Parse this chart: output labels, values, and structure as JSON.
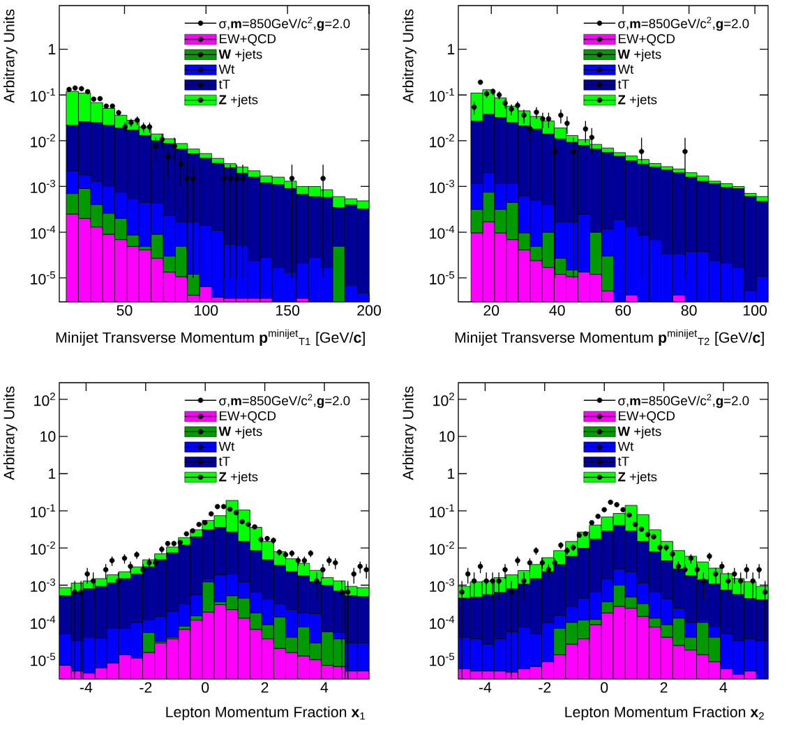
{
  "chart_data": [
    {
      "type": "bar",
      "stacked": true,
      "xlabel": "Minijet Transverse Momentum **p**$^{minijet}$$_{T1}$ [GeV/**c**]",
      "ylabel": "Arbitrary Units",
      "log": "y",
      "legend": "top right",
      "xlim": [
        10,
        200
      ],
      "ylim": [
        3e-06,
        9
      ],
      "xticks": [
        50,
        100,
        150,
        200
      ],
      "yticks": [
        {
          "value": 1e-05,
          "label": "10$^{-5}$"
        },
        {
          "value": 0.0001,
          "label": "10$^{-4}$"
        },
        {
          "value": 0.001,
          "label": "10$^{-3}$"
        },
        {
          "value": 0.01,
          "label": "10$^{-2}$"
        },
        {
          "value": 0.1,
          "label": "10$^{-1}$"
        },
        1
      ],
      "x": [
        18.0,
        25.5,
        32.9,
        40.3,
        47.7,
        55.2,
        62.6,
        70.0,
        77.5,
        84.9,
        92.3,
        99.7,
        107.2,
        114.6,
        122.0,
        129.4,
        136.9,
        144.3,
        151.7,
        159.2,
        166.6,
        174.0,
        181.4,
        188.9,
        196.3
      ],
      "series": [
        {
          "name": "σ,**m**=850GeV/c$^{2}$,**g**=2.0",
          "type": "scatter",
          "color": "#000000",
          "marker": "circle",
          "x": [
            16.0,
            19.7,
            23.6,
            27.4,
            31.1,
            35.0,
            38.8,
            42.6,
            46.4,
            50.3,
            54.0,
            57.8,
            61.7,
            65.4,
            69.2,
            73.1,
            76.8,
            80.7,
            84.5,
            88.2,
            92.1,
            111.1,
            114.9,
            118.8,
            122.5,
            152.7,
            171.8
          ],
          "values": [
            0.132,
            0.142,
            0.137,
            0.118,
            0.081,
            0.083,
            0.057,
            0.057,
            0.041,
            0.02,
            0.025,
            0.028,
            0.02,
            0.02,
            0.0076,
            0.0107,
            0.0045,
            0.0076,
            0.0031,
            0.0015,
            0.0015,
            0.0015,
            0.0015,
            0.0015,
            0.0015,
            0.0015,
            0.0015
          ],
          "errors": [
            0.01,
            0.01,
            0.01,
            0.01,
            0.008,
            0.008,
            0.007,
            0.007,
            0.006,
            0.005,
            0.005,
            0.006,
            0.005,
            0.005,
            0.004,
            0.0035,
            0.003,
            0.004,
            0.0021,
            0.00149,
            0.00149,
            0.00149,
            0.00149,
            0.00149,
            0.00149,
            0.00149,
            0.00149
          ]
        },
        {
          "name": "EW+QCD",
          "color": "#ff00ff",
          "values": [
            0.00025,
            0.0002,
            0.00013,
            9e-05,
            6.9e-05,
            4.9e-05,
            4.1e-05,
            2.7e-05,
            1.35e-05,
            1.07e-05,
            4.2e-06,
            6.5e-06,
            3.8e-06,
            3.6e-06,
            3.6e-06,
            3.6e-06,
            3.6e-06,
            null,
            null,
            3.6e-06,
            null,
            null,
            null,
            null,
            null
          ]
        },
        {
          "name": "**W** +jets",
          "color": "#009900",
          "values": [
            0.00045,
            0.0007,
            0.00027,
            0.00017,
            0.000131,
            3.8e-05,
            8e-06,
            6.3e-05,
            1.65e-05,
            3.83e-05,
            7.8e-06,
            null,
            null,
            null,
            null,
            null,
            null,
            null,
            null,
            null,
            null,
            null,
            4.9e-05,
            null,
            null
          ]
        },
        {
          "name": "Wt",
          "color": "#0000ff",
          "values": [
            0.0015,
            0.0009,
            0.0009,
            0.00074,
            0.00055,
            0.000443,
            0.000401,
            0.00034,
            0.0002,
            0.000121,
            0.000158,
            0.000134,
            0.000106,
            5.14e-05,
            4.84e-05,
            2.04e-05,
            2.44e-05,
            1.7e-05,
            1.35e-05,
            1.74e-05,
            2.8e-05,
            1.7e-05,
            null,
            7e-06,
            4.7e-06
          ]
        },
        {
          "name": "tT",
          "color": "#000099",
          "values": [
            0.0198,
            0.0242,
            0.0237,
            0.021,
            0.0183,
            0.0165,
            0.0126,
            0.0096,
            0.0085,
            0.0064,
            0.005,
            0.004,
            0.0031,
            0.0025,
            0.0019,
            0.00158,
            0.00117,
            0.00108,
            0.00089,
            0.00065,
            0.00057,
            0.00056,
            0.0003,
            0.00039,
            0.00032
          ]
        },
        {
          "name": "**Z** +jets",
          "color": "#00ff00",
          "values": [
            0.098,
            0.084,
            0.043,
            0.029,
            0.017,
            0.011,
            0.007,
            0.004,
            0.0023,
            0.0021,
            0.0014,
            0.0011,
            0.0009,
            0.0006,
            0.0007,
            0.0006,
            0.0005,
            0.0005,
            0.0004,
            0.00033,
            0.0004,
            0.00027,
            0.00025,
            0.00014,
            0.00016
          ]
        }
      ]
    },
    {
      "type": "bar",
      "stacked": true,
      "xlabel": "Minijet Transverse Momentum **p**$^{minijet}$$_{T2}$ [GeV/**c**]",
      "ylabel": "Arbitrary Units",
      "log": "y",
      "legend": "top right",
      "xlim": [
        10,
        104
      ],
      "ylim": [
        3e-06,
        9
      ],
      "xticks": [
        20,
        40,
        60,
        80,
        100
      ],
      "yticks": [
        {
          "value": 1e-05,
          "label": "10$^{-5}$"
        },
        {
          "value": 0.0001,
          "label": "10$^{-4}$"
        },
        {
          "value": 0.001,
          "label": "10$^{-3}$"
        },
        {
          "value": 0.01,
          "label": "10$^{-2}$"
        },
        {
          "value": 0.1,
          "label": "10$^{-1}$"
        },
        1
      ],
      "x": [
        15.6,
        19.2,
        22.8,
        26.4,
        30.0,
        33.6,
        37.3,
        40.9,
        44.5,
        48.1,
        51.7,
        55.3,
        58.9,
        62.5,
        66.1,
        69.7,
        73.3,
        76.9,
        80.6,
        84.2,
        87.8,
        91.4,
        95.0,
        98.6,
        102.2
      ],
      "series": [
        {
          "name": "σ,**m**=850GeV/c$^{2}$,**g**=2.0",
          "type": "scatter",
          "color": "#000000",
          "marker": "circle",
          "x": [
            14.8,
            16.7,
            18.6,
            20.5,
            22.4,
            24.2,
            26.1,
            28.0,
            29.9,
            31.8,
            33.7,
            35.6,
            37.4,
            39.3,
            41.1,
            43.0,
            44.9,
            48.6,
            50.5,
            65.6,
            78.8
          ],
          "values": [
            0.054,
            0.19,
            0.106,
            0.119,
            0.1,
            0.066,
            0.049,
            0.059,
            0.036,
            0.018,
            0.042,
            0.03,
            0.03,
            0.0058,
            0.036,
            0.024,
            0.0058,
            0.018,
            0.0118,
            0.0058,
            0.0058
          ],
          "errors": [
            0.017,
            0.02,
            0.02,
            0.02,
            0.02,
            0.015,
            0.013,
            0.013,
            0.012,
            0.009,
            0.012,
            0.011,
            0.011,
            0.00579,
            0.012,
            0.01,
            0.00579,
            0.009,
            0.007,
            0.00579,
            0.00579
          ]
        },
        {
          "name": "EW+QCD",
          "color": "#ff00ff",
          "values": [
            9.7e-05,
            0.00017,
            9.7e-05,
            6.9e-05,
            4.1e-05,
            2.4e-05,
            1.7e-05,
            1.2e-05,
            1.07e-05,
            1.35e-05,
            1.2e-05,
            5.2e-06,
            null,
            4.2e-06,
            null,
            null,
            null,
            4.2e-06,
            null,
            null,
            null,
            null,
            null,
            null,
            null
          ]
        },
        {
          "name": "**W** +jets",
          "color": "#009900",
          "values": [
            0.00022,
            0.00058,
            0.00022,
            0.00038,
            5.6e-05,
            2.5e-05,
            8.3e-05,
            1.5e-05,
            4.3e-06,
            null,
            8.8e-05,
            2.5e-05,
            null,
            null,
            null,
            null,
            null,
            null,
            null,
            null,
            null,
            null,
            null,
            null,
            null
          ]
        },
        {
          "name": "Wt",
          "color": "#0000ff",
          "values": [
            0.00083,
            0.00125,
            0.00083,
            0.0007,
            0.00053,
            0.00045,
            0.0003,
            0.000143,
            0.000155,
            0.000237,
            null,
            8.7e-05,
            0.00019,
            0.000126,
            8.7e-05,
            6.9e-05,
            3.4e-05,
            2.98e-05,
            3.8e-05,
            3.8e-05,
            2.4e-05,
            2.1e-05,
            1.7e-05,
            5.2e-06,
            1.1e-05
          ]
        },
        {
          "name": "tT",
          "color": "#000099",
          "values": [
            0.0259,
            0.036,
            0.0309,
            0.0239,
            0.0204,
            0.0175,
            0.0136,
            0.0108,
            0.0091,
            0.0076,
            0.0065,
            0.0054,
            0.0044,
            0.0035,
            0.003,
            0.0026,
            0.00227,
            0.00197,
            0.00156,
            0.00126,
            0.00113,
            0.00093,
            0.00088,
            0.0006,
            0.00046
          ]
        },
        {
          "name": "**Z** +jets",
          "color": "#00ff00",
          "values": [
            0.083,
            0.092,
            0.054,
            0.032,
            0.024,
            0.016,
            0.013,
            0.008,
            0.0037,
            0.0027,
            0.0017,
            0.0014,
            0.0009,
            0.001,
            0.0008,
            0.0005,
            0.0004,
            0.0004,
            0.0004,
            0.0004,
            0.00015,
            0.0002,
            0.0001,
            0.0001,
            0.00013
          ]
        }
      ]
    },
    {
      "type": "bar",
      "stacked": true,
      "xlabel": "Lepton Momentum Fraction **x**$_{1}$",
      "ylabel": "Arbitrary Units",
      "log": "y",
      "legend": "top right",
      "xlim": [
        -4.9,
        5.5
      ],
      "ylim": [
        3e-06,
        280
      ],
      "xticks": [
        -4,
        -2,
        0,
        2,
        4
      ],
      "yticks": [
        {
          "value": 1e-05,
          "label": "10$^{-5}$"
        },
        {
          "value": 0.0001,
          "label": "10$^{-4}$"
        },
        {
          "value": 0.001,
          "label": "10$^{-3}$"
        },
        {
          "value": 0.01,
          "label": "10$^{-2}$"
        },
        {
          "value": 0.1,
          "label": "10$^{-1}$"
        },
        1,
        10,
        {
          "value": 100,
          "label": "10$^{2}$"
        }
      ],
      "x": [
        -4.7,
        -4.3,
        -3.9,
        -3.5,
        -3.1,
        -2.7,
        -2.3,
        -1.9,
        -1.5,
        -1.1,
        -0.7,
        -0.3,
        0.1,
        0.5,
        0.9,
        1.3,
        1.7,
        2.1,
        2.5,
        2.9,
        3.3,
        3.7,
        4.1,
        4.5,
        4.9,
        5.3
      ],
      "series": [
        {
          "name": "σ,**m**=850GeV/c$^{2}$,**g**=2.0",
          "type": "scatter",
          "color": "#000000",
          "marker": "circle",
          "x": [
            -4.38,
            -4.17,
            -3.96,
            -3.76,
            -3.34,
            -3.13,
            -2.92,
            -2.71,
            -2.51,
            -2.3,
            -2.09,
            -1.88,
            -1.67,
            -1.46,
            -1.26,
            -1.05,
            -0.84,
            -0.63,
            -0.42,
            -0.21,
            -0.01,
            0.2,
            0.41,
            0.62,
            0.83,
            1.04,
            1.24,
            1.45,
            1.66,
            1.87,
            2.08,
            2.29,
            2.49,
            2.7,
            2.91,
            3.12,
            3.33,
            3.54,
            3.74,
            3.95,
            4.16,
            4.37,
            4.58,
            4.79,
            4.99,
            5.2,
            5.41
          ],
          "values": [
            0.00065,
            0.00065,
            0.002,
            0.0013,
            0.0026,
            0.0046,
            0.0013,
            0.0053,
            0.0032,
            0.0066,
            0.0026,
            0.004,
            0.004,
            0.0092,
            0.0132,
            0.0132,
            0.0141,
            0.024,
            0.029,
            0.043,
            0.048,
            0.083,
            0.13,
            0.13,
            0.11,
            0.089,
            0.051,
            0.043,
            0.037,
            0.017,
            0.018,
            0.016,
            0.0077,
            0.0066,
            0.0072,
            0.0046,
            0.0046,
            0.0072,
            0.0013,
            0.0026,
            0.0046,
            0.004,
            0.00065,
            0.00065,
            0.002,
            0.0032,
            0.0026
          ],
          "errors": [
            0.000647,
            0.000647,
            0.0009,
            0.0009,
            0.0011,
            0.0013,
            0.0009,
            0.0015,
            0.0011,
            0.0015,
            0.0011,
            0.0013,
            0.0013,
            0.002,
            0.002,
            0.002,
            0.002,
            0.003,
            0.003,
            null,
            null,
            null,
            null,
            null,
            null,
            null,
            null,
            null,
            0.004,
            0.003,
            0.003,
            0.003,
            0.0015,
            0.0015,
            0.0015,
            0.0013,
            0.0013,
            0.0015,
            0.0009,
            0.0011,
            0.0013,
            0.0013,
            0.000647,
            0.000647,
            0.0009,
            0.0011,
            0.0011
          ]
        },
        {
          "name": "EW+QCD",
          "color": "#ff00ff",
          "values": [
            7e-06,
            4.9e-06,
            4.3e-06,
            6e-06,
            8.1e-06,
            1.35e-05,
            1.1e-05,
            1.55e-05,
            2.8e-05,
            3.6e-05,
            6.5e-05,
            0.000115,
            0.00019,
            0.0003,
            0.00022,
            0.00013,
            6.5e-05,
            3.6e-05,
            2e-05,
            1.55e-05,
            1.25e-05,
            1e-05,
            7e-06,
            6.5e-06,
            4.9e-06,
            4.9e-06
          ]
        },
        {
          "name": "**W** +jets",
          "color": "#009900",
          "values": [
            null,
            null,
            null,
            null,
            null,
            null,
            null,
            3.75e-05,
            3e-06,
            4e-06,
            1.5e-05,
            3.5e-05,
            0.00104,
            6e-05,
            0.0003,
            0.00032,
            0.000115,
            5.1e-05,
            0.00012,
            2.45e-05,
            6.25e-05,
            1.8e-05,
            4.9e-05,
            2.95e-05,
            null,
            null
          ]
        },
        {
          "name": "Wt",
          "color": "#0000ff",
          "values": [
            4.2e-05,
            2.7e-05,
            3.6e-05,
            3.2e-05,
            6.1e-05,
            5.55e-05,
            8.9e-05,
            6.2e-05,
            0.000114,
            0.00016,
            0.00024,
            0.00041,
            0.00027,
            0.00154,
            0.00148,
            0.00078,
            0.00047,
            0.000333,
            0.00018,
            0.00018,
            0.000105,
            0.000142,
            null,
            1.7e-05,
            2.31e-05,
            2.31e-05
          ]
        },
        {
          "name": "tT",
          "color": "#000099",
          "values": [
            0.00047,
            0.00062,
            0.00076,
            0.00089,
            0.00108,
            0.00143,
            0.0019,
            0.003,
            0.0047,
            0.0072,
            0.0117,
            0.0194,
            0.0295,
            0.0341,
            0.025,
            0.0138,
            0.0079,
            0.0044,
            0.0031,
            0.0021,
            0.0016,
            0.00106,
            0.00094,
            0.00065,
            0.00049,
            0.00047
          ]
        },
        {
          "name": "**Z** +jets",
          "color": "#00ff00",
          "values": [
            0.00034,
            0.00049,
            0.0005,
            0.00057,
            0.00075,
            0.0008,
            0.0011,
            0.0017,
            0.0021,
            0.0032,
            0.007,
            0.011,
            0.024,
            0.038,
            0.163,
            0.09,
            0.0275,
            0.0102,
            0.0045,
            0.0028,
            0.0021,
            0.00127,
            0.0006,
            0.0006,
            0.00041,
            0.00036
          ]
        }
      ]
    },
    {
      "type": "bar",
      "stacked": true,
      "xlabel": "Lepton Momentum Fraction **x**$_{2}$",
      "ylabel": "Arbitrary Units",
      "log": "y",
      "legend": "top right",
      "xlim": [
        -4.9,
        5.5
      ],
      "ylim": [
        3e-06,
        280
      ],
      "xticks": [
        -4,
        -2,
        0,
        2,
        4
      ],
      "yticks": [
        {
          "value": 1e-05,
          "label": "10$^{-5}$"
        },
        {
          "value": 0.0001,
          "label": "10$^{-4}$"
        },
        {
          "value": 0.001,
          "label": "10$^{-3}$"
        },
        {
          "value": 0.01,
          "label": "10$^{-2}$"
        },
        {
          "value": 0.1,
          "label": "10$^{-1}$"
        },
        1,
        10,
        {
          "value": 100,
          "label": "10$^{2}$"
        }
      ],
      "x": [
        -4.7,
        -4.3,
        -3.9,
        -3.5,
        -3.1,
        -2.7,
        -2.3,
        -1.9,
        -1.5,
        -1.1,
        -0.7,
        -0.3,
        0.1,
        0.5,
        0.9,
        1.3,
        1.7,
        2.1,
        2.5,
        2.9,
        3.3,
        3.7,
        4.1,
        4.5,
        4.9,
        5.3
      ],
      "series": [
        {
          "name": "σ,**m**=850GeV/c$^{2}$,**g**=2.0",
          "type": "scatter",
          "color": "#000000",
          "marker": "circle",
          "x": [
            -4.78,
            -4.58,
            -4.37,
            -4.16,
            -3.96,
            -3.75,
            -3.54,
            -3.33,
            -3.12,
            -2.91,
            -2.7,
            -2.5,
            -2.29,
            -2.08,
            -1.87,
            -1.66,
            -1.46,
            -1.25,
            -1.04,
            -0.84,
            -0.63,
            -0.42,
            -0.21,
            0.0,
            0.21,
            0.42,
            0.63,
            0.84,
            1.04,
            1.25,
            1.46,
            1.66,
            1.87,
            2.08,
            2.29,
            2.49,
            2.71,
            2.91,
            3.12,
            3.33,
            3.53,
            3.74,
            3.95,
            4.16,
            4.37,
            4.58,
            4.78,
            4.99,
            5.2,
            5.4
          ],
          "values": [
            0.00065,
            0.002,
            0.0013,
            0.0032,
            0.0013,
            0.0013,
            0.0013,
            0.0026,
            0.00065,
            0.0046,
            0.0013,
            0.004,
            0.0085,
            0.004,
            0.0026,
            0.004,
            0.0119,
            0.0085,
            0.0103,
            0.022,
            0.024,
            0.048,
            0.071,
            0.107,
            0.17,
            0.146,
            0.107,
            0.077,
            0.043,
            0.032,
            0.023,
            0.02,
            0.0103,
            0.0103,
            0.0069,
            0.0032,
            0.0026,
            0.0053,
            0.0026,
            0.0013,
            0.006,
            0.002,
            0.0032,
            0.0013,
            0.002,
            0.0013,
            0.0026,
            0.0013,
            0.0026,
            0.00065
          ],
          "errors": [
            0.000647,
            0.0009,
            0.0009,
            0.0011,
            0.0009,
            0.0009,
            0.0009,
            0.0011,
            0.000647,
            0.0013,
            0.0009,
            0.0013,
            0.002,
            0.0013,
            0.0011,
            0.0013,
            0.0025,
            0.002,
            0.002,
            0.003,
            0.003,
            null,
            null,
            null,
            null,
            null,
            null,
            null,
            null,
            0.004,
            0.003,
            0.003,
            0.002,
            0.002,
            0.0015,
            0.0011,
            0.0011,
            0.0015,
            0.0011,
            0.0009,
            0.0015,
            0.0009,
            0.0011,
            0.0009,
            0.0009,
            0.0009,
            0.0011,
            0.0009,
            0.0011,
            0.000647
          ]
        },
        {
          "name": "EW+QCD",
          "color": "#ff00ff",
          "values": [
            5.6e-06,
            4.9e-06,
            4.9e-06,
            4.9e-06,
            4.6e-06,
            5.6e-06,
            6.5e-06,
            8.7e-06,
            1.35e-05,
            2.6e-05,
            3.6e-05,
            8.7e-05,
            0.00018,
            0.00027,
            0.00024,
            0.000145,
            7.5e-05,
            4e-05,
            2.4e-05,
            1.8e-05,
            1.35e-05,
            8.7e-06,
            5.6e-06,
            4e-06,
            4.9e-06,
            null
          ]
        },
        {
          "name": "**W** +jets",
          "color": "#009900",
          "values": [
            null,
            null,
            null,
            null,
            null,
            null,
            null,
            null,
            5.55e-05,
            7.4e-05,
            7.9e-05,
            3.3e-05,
            0.00018,
            0.00073,
            0.00024,
            0.000175,
            5.5e-05,
            4.7e-05,
            0.000106,
            2.2e-05,
            8.65e-05,
            3.13e-05,
            null,
            null,
            null,
            null
          ]
        },
        {
          "name": "Wt",
          "color": "#0000ff",
          "values": [
            3.44e-05,
            3.1e-05,
            2.1e-05,
            3.1e-05,
            5.1e-05,
            6.9e-05,
            4.25e-05,
            9.1e-05,
            8.6e-05,
            0.00017,
            0.000335,
            0.00053,
            0.00114,
            0.0017,
            0.00182,
            0.00082,
            0.00052,
            0.000343,
            0.00011,
            6e-05,
            1.5e-05,
            3.5e-05,
            4.34e-05,
            2.8e-05,
            3.11e-05,
            3.2e-05
          ]
        },
        {
          "name": "tT",
          "color": "#000099",
          "values": [
            0.00041,
            0.00044,
            0.00053,
            0.00061,
            0.00074,
            0.001,
            0.00145,
            0.0022,
            0.00345,
            0.0057,
            0.0094,
            0.0168,
            0.0275,
            0.0383,
            0.0267,
            0.0139,
            0.0073,
            0.0041,
            0.0025,
            0.0017,
            0.0013,
            0.001,
            0.00069,
            0.00053,
            0.0004,
            0.00037
          ]
        },
        {
          "name": "**Z** +jets",
          "color": "#00ff00",
          "values": [
            0.00048,
            0.00075,
            0.00074,
            0.00095,
            0.0011,
            0.0014,
            0.0021,
            0.0032,
            0.0049,
            0.009,
            0.017,
            0.024,
            0.039,
            0.044,
            0.111,
            0.064,
            0.023,
            0.0105,
            0.0058,
            0.0042,
            0.0028,
            0.0018,
            0.0013,
            0.00094,
            0.0008,
            0.00053
          ]
        }
      ]
    }
  ]
}
